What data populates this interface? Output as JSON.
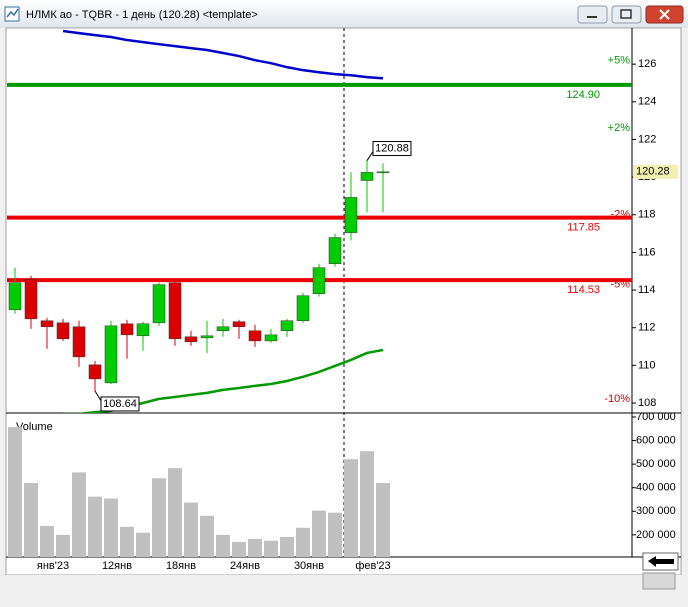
{
  "window_title": "НЛМК ао - TQBR - 1 день (120.28) <template>",
  "chart_data": {
    "type": "candlestick",
    "categories": [
      null,
      null,
      "янв'23",
      null,
      null,
      null,
      "12янв",
      null,
      null,
      null,
      "18янв",
      null,
      null,
      null,
      "24янв",
      null,
      null,
      null,
      "30янв",
      null,
      null,
      null,
      "фев'23",
      null
    ],
    "open": [
      112.95,
      114.55,
      112.37,
      112.26,
      112.05,
      110.03,
      109.07,
      112.21,
      111.57,
      112.26,
      114.39,
      111.52,
      111.46,
      111.84,
      112.32,
      111.84,
      111.3,
      111.84,
      112.37,
      113.81,
      115.4,
      117.05,
      119.82,
      120.28
    ],
    "high": [
      115.19,
      114.76,
      112.53,
      112.47,
      112.37,
      110.24,
      112.37,
      112.42,
      112.32,
      114.39,
      114.45,
      111.84,
      112.37,
      112.47,
      112.42,
      112.16,
      111.94,
      112.47,
      113.86,
      115.4,
      117.0,
      120.25,
      120.88,
      120.73
    ],
    "low": [
      112.74,
      111.94,
      110.88,
      111.3,
      109.92,
      108.64,
      109.01,
      110.35,
      110.77,
      112.1,
      111.04,
      111.04,
      110.66,
      111.52,
      111.41,
      110.98,
      111.2,
      111.52,
      112.26,
      113.65,
      115.24,
      116.63,
      118.12,
      118.12
    ],
    "close": [
      114.39,
      112.47,
      112.05,
      111.41,
      110.45,
      109.28,
      112.1,
      111.62,
      112.21,
      114.29,
      111.41,
      111.25,
      111.57,
      112.05,
      112.05,
      111.3,
      111.62,
      112.37,
      113.7,
      115.19,
      116.79,
      118.92,
      120.25,
      120.28
    ],
    "up_color": "#00cc00",
    "down_color": "#dd0000",
    "ylim": [
      107.47,
      127.92
    ],
    "yticks": [
      108,
      110,
      112,
      114,
      116,
      118,
      120,
      122,
      124,
      126
    ],
    "lines": [
      {
        "color": "#0000cc",
        "values": [
          null,
          null,
          null,
          127.76,
          127.65,
          127.54,
          127.44,
          127.28,
          127.17,
          127.06,
          126.96,
          126.85,
          126.75,
          126.59,
          126.43,
          126.21,
          126.05,
          125.84,
          125.68,
          125.57,
          125.47,
          125.41,
          125.31,
          125.25
        ]
      },
      {
        "color": "#009900",
        "values": [
          null,
          null,
          null,
          107.42,
          107.42,
          107.52,
          107.58,
          107.79,
          108.0,
          108.22,
          108.32,
          108.43,
          108.54,
          108.7,
          108.8,
          108.91,
          109.01,
          109.17,
          109.39,
          109.65,
          109.97,
          110.29,
          110.66,
          110.82
        ]
      }
    ],
    "levels": [
      {
        "value": 124.9,
        "label": "124.90",
        "color": "#009900"
      },
      {
        "value": 117.85,
        "label": "117.85",
        "color": "#ee0000"
      },
      {
        "value": 114.53,
        "label": "114.53",
        "color": "#ee0000"
      }
    ],
    "percent_labels": [
      {
        "label": "+5%",
        "value": 126.2,
        "color": "#009900"
      },
      {
        "label": "+2%",
        "value": 122.6,
        "color": "#009900"
      },
      {
        "label": "-2%",
        "value": 118.0,
        "color": "#cc0000"
      },
      {
        "label": "-5%",
        "value": 114.3,
        "color": "#cc0000"
      },
      {
        "label": "-10%",
        "value": 108.2,
        "color": "#cc0000"
      }
    ],
    "high_annotation": {
      "value": 120.88,
      "index": 22
    },
    "low_annotation": {
      "value": 108.64,
      "index": 5
    },
    "last_price": 120.28,
    "volume": {
      "name": "Volume",
      "color": "#c0c0c0",
      "values": [
        657000,
        420000,
        238000,
        200000,
        465000,
        362000,
        354000,
        234000,
        209000,
        440000,
        483000,
        337000,
        281000,
        200000,
        170000,
        183000,
        175000,
        191000,
        230000,
        303000,
        294000,
        521000,
        555000,
        420000
      ],
      "ylim": [
        106000,
        717000
      ],
      "yticks": [
        {
          "value": 200000,
          "label": "200 000"
        },
        {
          "value": 300000,
          "label": "300 000"
        },
        {
          "value": 400000,
          "label": "400 000"
        },
        {
          "value": 500000,
          "label": "500 000"
        },
        {
          "value": 600000,
          "label": "600 000"
        },
        {
          "value": 700000,
          "label": "700 000"
        }
      ]
    }
  }
}
